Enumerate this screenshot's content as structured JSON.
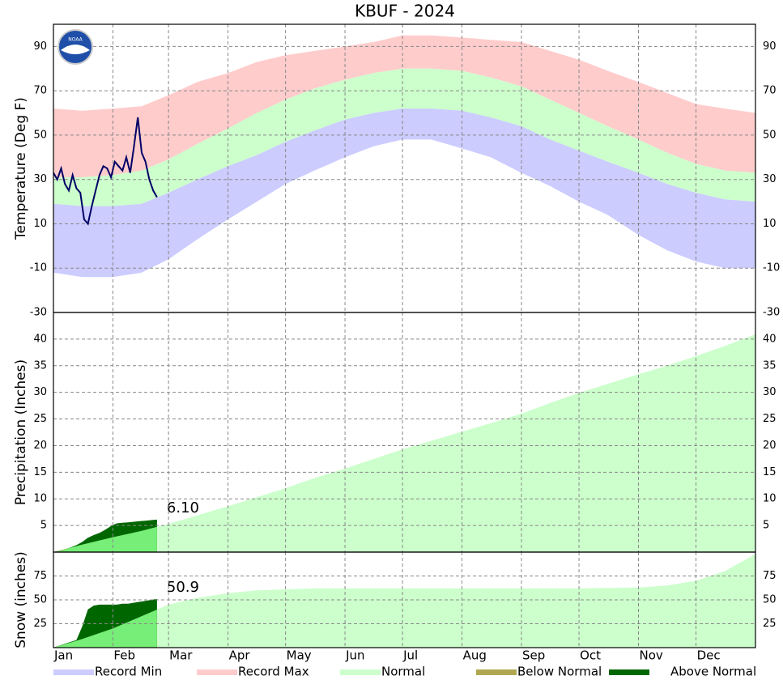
{
  "title": "KBUF - 2024",
  "logo": "NOAA",
  "xlim": [
    0,
    366
  ],
  "xticks": [
    {
      "value": 0,
      "label": "Jan"
    },
    {
      "value": 31,
      "label": "Feb"
    },
    {
      "value": 60,
      "label": "Mar"
    },
    {
      "value": 91,
      "label": "Apr"
    },
    {
      "value": 121,
      "label": "May"
    },
    {
      "value": 152,
      "label": "Jun"
    },
    {
      "value": 182,
      "label": "Jul"
    },
    {
      "value": 213,
      "label": "Aug"
    },
    {
      "value": 244,
      "label": "Sep"
    },
    {
      "value": 274,
      "label": "Oct"
    },
    {
      "value": 305,
      "label": "Nov"
    },
    {
      "value": 335,
      "label": "Dec"
    }
  ],
  "legend": [
    {
      "name": "Record Min",
      "color": "#ccccff"
    },
    {
      "name": "Record Max",
      "color": "#ffcccc"
    },
    {
      "name": "Normal",
      "color": "#ccffcc"
    },
    {
      "name": "Below Normal",
      "color": "#b0a850"
    },
    {
      "name": "Above Normal",
      "color": "#006600"
    }
  ],
  "chart_data": [
    {
      "type": "band",
      "ylabel": "Temperature (Deg F)",
      "ylim": [
        -30,
        100
      ],
      "yticks": [
        -30,
        -10,
        10,
        30,
        50,
        70,
        90
      ],
      "grid": true,
      "x": [
        0,
        15,
        31,
        46,
        60,
        75,
        91,
        106,
        121,
        136,
        152,
        167,
        182,
        197,
        213,
        228,
        244,
        259,
        274,
        289,
        305,
        320,
        335,
        350,
        366
      ],
      "series": [
        {
          "name": "Record Max",
          "color": "#ffcccc",
          "values": [
            62,
            61,
            62,
            63,
            68,
            74,
            78,
            83,
            86,
            88,
            90,
            92,
            95,
            95,
            94,
            93,
            92,
            88,
            84,
            79,
            74,
            69,
            64,
            62,
            60
          ]
        },
        {
          "name": "Normal",
          "color": "#ccffcc",
          "high": [
            31,
            31,
            32,
            34,
            39,
            46,
            53,
            60,
            66,
            71,
            75,
            78,
            80,
            80,
            79,
            76,
            72,
            66,
            60,
            54,
            48,
            42,
            37,
            34,
            33
          ],
          "low": [
            19,
            18,
            18,
            19,
            24,
            30,
            36,
            41,
            47,
            52,
            57,
            60,
            62,
            62,
            61,
            58,
            54,
            48,
            43,
            38,
            33,
            28,
            24,
            21,
            20
          ]
        },
        {
          "name": "Record Min",
          "color": "#ccccff",
          "values": [
            -12,
            -14,
            -14,
            -12,
            -6,
            3,
            12,
            20,
            28,
            34,
            40,
            45,
            48,
            48,
            44,
            40,
            33,
            27,
            20,
            14,
            5,
            -2,
            -7,
            -10,
            -10
          ]
        }
      ],
      "observed": {
        "color": "#000066",
        "x": [
          0,
          2,
          4,
          6,
          8,
          10,
          12,
          14,
          16,
          18,
          20,
          22,
          24,
          26,
          28,
          30,
          32,
          34,
          36,
          38,
          40,
          42,
          44,
          46,
          48,
          50,
          52,
          54
        ],
        "values": [
          33,
          30,
          35,
          28,
          25,
          32,
          26,
          24,
          12,
          10,
          18,
          25,
          32,
          36,
          35,
          31,
          38,
          36,
          34,
          40,
          33,
          45,
          58,
          42,
          38,
          30,
          25,
          22
        ]
      }
    },
    {
      "type": "cumulative",
      "ylabel": "Precipitation (Inches)",
      "ylim": [
        0,
        45
      ],
      "yticks": [
        5,
        10,
        15,
        20,
        25,
        30,
        35,
        40
      ],
      "grid": true,
      "x": [
        0,
        15,
        31,
        46,
        60,
        75,
        91,
        106,
        121,
        136,
        152,
        167,
        182,
        197,
        213,
        228,
        244,
        259,
        274,
        289,
        305,
        320,
        335,
        350,
        366
      ],
      "series": [
        {
          "name": "Normal",
          "color": "#ccffcc",
          "values": [
            0,
            1.4,
            2.8,
            4.0,
            5.3,
            6.9,
            8.6,
            10.3,
            12.0,
            13.9,
            15.7,
            17.5,
            19.3,
            20.9,
            22.6,
            24.2,
            26.0,
            28.0,
            29.9,
            31.6,
            33.4,
            35.0,
            36.8,
            38.7,
            40.9
          ]
        }
      ],
      "observed": {
        "color": "#77ee77",
        "above_color": "#006600",
        "below_color": "#b0a850",
        "x": [
          0,
          3,
          6,
          9,
          12,
          15,
          18,
          21,
          24,
          27,
          30,
          33,
          36,
          39,
          42,
          45,
          48,
          51,
          54
        ],
        "values": [
          0,
          0.2,
          0.5,
          0.9,
          1.3,
          1.9,
          2.7,
          3.2,
          3.6,
          4.2,
          4.9,
          5.4,
          5.5,
          5.6,
          5.7,
          5.8,
          5.9,
          6.0,
          6.1
        ]
      },
      "annotation": "6.10"
    },
    {
      "type": "cumulative",
      "ylabel": "Snow (inches)",
      "ylim": [
        0,
        100
      ],
      "yticks": [
        25,
        50,
        75
      ],
      "grid": true,
      "x": [
        0,
        15,
        31,
        46,
        60,
        75,
        91,
        106,
        121,
        136,
        152,
        167,
        182,
        197,
        213,
        228,
        244,
        259,
        274,
        289,
        305,
        320,
        335,
        350,
        366
      ],
      "series": [
        {
          "name": "Normal",
          "color": "#ccffcc",
          "values": [
            0,
            9,
            20,
            33,
            45,
            52,
            57,
            60,
            61,
            62,
            62,
            62,
            62,
            62,
            62,
            62,
            62,
            62,
            62,
            62.5,
            63,
            65,
            70,
            80,
            98
          ]
        }
      ],
      "observed": {
        "color": "#77ee77",
        "above_color": "#006600",
        "below_color": "#b0a850",
        "x": [
          0,
          3,
          6,
          9,
          12,
          15,
          18,
          21,
          24,
          27,
          30,
          33,
          36,
          39,
          42,
          45,
          48,
          51,
          54
        ],
        "values": [
          0,
          2,
          4,
          6,
          8,
          22,
          40,
          44,
          45,
          45,
          45,
          45,
          46,
          46,
          47,
          48,
          49,
          50,
          50.9
        ]
      },
      "annotation": "50.9"
    }
  ]
}
